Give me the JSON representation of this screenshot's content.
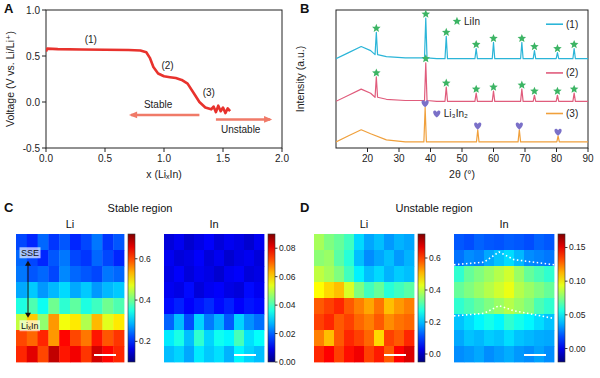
{
  "chart_data": [
    {
      "type": "line",
      "panel": "A",
      "xlabel": "x (LiₓIn)",
      "ylabel": "Voltage (V vs. Li/Li⁺)",
      "xlim": [
        0,
        2
      ],
      "ylim": [
        -0.5,
        1
      ],
      "xticks": [
        {
          "value": 0,
          "label": "0.0"
        },
        0.5,
        {
          "value": 1,
          "label": "1.0"
        },
        1.5,
        {
          "value": 2,
          "label": "2.0"
        }
      ],
      "yticks": [
        -0.5,
        {
          "value": 0,
          "label": "0.0"
        },
        0.5,
        {
          "value": 1,
          "label": "1.0"
        }
      ],
      "x": [
        0,
        0.01,
        0.1,
        0.3,
        0.5,
        0.7,
        0.8,
        0.85,
        0.88,
        0.91,
        0.95,
        1.0,
        1.05,
        1.1,
        1.15,
        1.2,
        1.25,
        1.3,
        1.35,
        1.4,
        1.42,
        1.44,
        1.46,
        1.48,
        1.5,
        1.52,
        1.54,
        1.56
      ],
      "values": [
        0.55,
        0.58,
        0.575,
        0.57,
        0.568,
        0.565,
        0.56,
        0.54,
        0.48,
        0.38,
        0.31,
        0.28,
        0.27,
        0.26,
        0.24,
        0.2,
        0.1,
        0.0,
        -0.06,
        -0.08,
        -0.05,
        -0.11,
        -0.04,
        -0.1,
        -0.06,
        -0.12,
        -0.07,
        -0.1
      ],
      "color": "#e8322d",
      "annotations": [
        "(1)",
        "(2)",
        "(3)",
        "Stable",
        "Unstable"
      ]
    },
    {
      "type": "line",
      "panel": "B",
      "xlabel": "2θ (°)",
      "ylabel": "Intensity (a.u.)",
      "xlim": [
        10,
        90
      ],
      "ylim": [
        0,
        3.4
      ],
      "xticks": [
        20,
        30,
        40,
        50,
        60,
        70,
        80,
        90
      ],
      "tick_labels": "x",
      "legend": "right",
      "series": [
        {
          "name": "(1)",
          "type": "line",
          "color": "#2bb5d8",
          "x": [
            10,
            14,
            18,
            21,
            22.4,
            22.8,
            23.2,
            26,
            32,
            38.1,
            38.5,
            38.9,
            42,
            44.6,
            45,
            45.4,
            50,
            54.1,
            54.5,
            54.9,
            57,
            59.6,
            60,
            60.4,
            65,
            68.6,
            69,
            69.4,
            71,
            72.6,
            73,
            73.4,
            77,
            79.9,
            80.3,
            80.7,
            83,
            85.2,
            85.6,
            86,
            90
          ],
          "values": [
            2.2,
            2.35,
            2.5,
            2.4,
            2.3,
            2.85,
            2.3,
            2.25,
            2.22,
            2.22,
            3.2,
            2.22,
            2.2,
            2.2,
            2.75,
            2.2,
            2.2,
            2.2,
            2.45,
            2.2,
            2.2,
            2.2,
            2.6,
            2.2,
            2.2,
            2.2,
            2.6,
            2.2,
            2.2,
            2.2,
            2.4,
            2.2,
            2.2,
            2.2,
            2.35,
            2.2,
            2.2,
            2.2,
            2.45,
            2.2,
            2.2
          ]
        },
        {
          "name": "(2)",
          "type": "line",
          "color": "#e05c7c",
          "x": [
            10,
            14,
            18,
            21,
            22.4,
            22.8,
            23.2,
            26,
            32,
            38.1,
            38.5,
            38.9,
            42,
            44.6,
            45,
            45.4,
            50,
            54.1,
            54.5,
            54.9,
            57,
            59.6,
            60,
            60.4,
            65,
            68.6,
            69,
            69.4,
            71,
            72.6,
            73,
            73.4,
            77,
            79.9,
            80.3,
            80.7,
            83,
            85.2,
            85.6,
            86,
            90
          ],
          "values": [
            1.15,
            1.3,
            1.45,
            1.35,
            1.25,
            1.75,
            1.25,
            1.2,
            1.17,
            1.17,
            2.1,
            1.17,
            1.15,
            1.15,
            1.5,
            1.15,
            1.15,
            1.15,
            1.35,
            1.15,
            1.15,
            1.15,
            1.4,
            1.15,
            1.15,
            1.15,
            1.45,
            1.15,
            1.15,
            1.15,
            1.3,
            1.15,
            1.15,
            1.15,
            1.3,
            1.15,
            1.15,
            1.15,
            1.35,
            1.15,
            1.15
          ]
        },
        {
          "name": "(3)",
          "type": "line",
          "color": "#f0a03c",
          "x": [
            10,
            14,
            18,
            21,
            26,
            32,
            37.9,
            38.3,
            38.7,
            45,
            54.6,
            55,
            55.4,
            62,
            67.8,
            68.2,
            68.6,
            75,
            80.1,
            80.5,
            80.9,
            90
          ],
          "values": [
            0.15,
            0.3,
            0.45,
            0.35,
            0.2,
            0.15,
            0.15,
            1.0,
            0.15,
            0.15,
            0.15,
            0.45,
            0.15,
            0.15,
            0.15,
            0.45,
            0.15,
            0.15,
            0.15,
            0.3,
            0.15,
            0.15
          ]
        },
        {
          "name": "LiIn",
          "type": "scatter",
          "marker": "star",
          "color": "#3cb464",
          "x": [
            22.8,
            38.5,
            45,
            54.5,
            60,
            69,
            73,
            80.3,
            85.6,
            22.8,
            38.5,
            45,
            54.5,
            60,
            69,
            73,
            80.3,
            85.6
          ],
          "values": [
            2.95,
            3.3,
            2.85,
            2.55,
            2.7,
            2.7,
            2.5,
            2.45,
            2.55,
            1.85,
            2.2,
            1.6,
            1.45,
            1.5,
            1.55,
            1.4,
            1.4,
            1.45
          ]
        },
        {
          "name": "Li₃In₂",
          "type": "scatter",
          "marker": "heart",
          "color": "#7a70c8",
          "x": [
            38.3,
            55,
            68.2,
            80.5
          ],
          "values": [
            1.1,
            0.55,
            0.55,
            0.4
          ]
        }
      ]
    },
    {
      "type": "heatmap",
      "panel": "C",
      "group_title": "Stable region",
      "title": "Li",
      "tick_labels": false,
      "annotations": [
        "SSE",
        "LiₓIn"
      ],
      "colorbar_range": [
        0.1,
        0.72
      ],
      "colorbar_ticks": [
        0.2,
        0.4,
        0.6
      ],
      "cells": [
        [
          0.22,
          0.2,
          0.24,
          0.21,
          0.23,
          0.2,
          0.22,
          0.25,
          0.21,
          0.23
        ],
        [
          0.24,
          0.22,
          0.2,
          0.23,
          0.25,
          0.22,
          0.21,
          0.24,
          0.22,
          0.2
        ],
        [
          0.25,
          0.23,
          0.24,
          0.22,
          0.26,
          0.24,
          0.23,
          0.22,
          0.25,
          0.24
        ],
        [
          0.28,
          0.3,
          0.27,
          0.29,
          0.31,
          0.28,
          0.3,
          0.27,
          0.29,
          0.3
        ],
        [
          0.35,
          0.38,
          0.34,
          0.4,
          0.36,
          0.39,
          0.35,
          0.37,
          0.4,
          0.38
        ],
        [
          0.45,
          0.52,
          0.42,
          0.55,
          0.48,
          0.5,
          0.44,
          0.53,
          0.47,
          0.5
        ],
        [
          0.6,
          0.58,
          0.62,
          0.55,
          0.64,
          0.6,
          0.57,
          0.63,
          0.59,
          0.61
        ],
        [
          0.62,
          0.66,
          0.6,
          0.68,
          0.63,
          0.65,
          0.61,
          0.67,
          0.64,
          0.62
        ]
      ]
    },
    {
      "type": "heatmap",
      "title": "In",
      "tick_labels": false,
      "colorbar_range": [
        0,
        0.09
      ],
      "colorbar_ticks": [
        {
          "value": 0,
          "label": "0.00"
        },
        0.02,
        0.04,
        0.06,
        0.08
      ],
      "cells": [
        [
          0.008,
          0.01,
          0.007,
          0.009,
          0.011,
          0.008,
          0.01,
          0.009,
          0.007,
          0.01
        ],
        [
          0.01,
          0.008,
          0.009,
          0.011,
          0.008,
          0.01,
          0.007,
          0.009,
          0.01,
          0.008
        ],
        [
          0.009,
          0.011,
          0.008,
          0.01,
          0.009,
          0.007,
          0.01,
          0.011,
          0.008,
          0.009
        ],
        [
          0.01,
          0.009,
          0.012,
          0.008,
          0.01,
          0.011,
          0.009,
          0.008,
          0.012,
          0.01
        ],
        [
          0.012,
          0.014,
          0.011,
          0.013,
          0.015,
          0.012,
          0.014,
          0.011,
          0.013,
          0.012
        ],
        [
          0.02,
          0.028,
          0.018,
          0.03,
          0.022,
          0.027,
          0.019,
          0.03,
          0.024,
          0.021
        ],
        [
          0.032,
          0.036,
          0.028,
          0.038,
          0.03,
          0.035,
          0.033,
          0.04,
          0.031,
          0.034
        ],
        [
          0.028,
          0.03,
          0.026,
          0.032,
          0.029,
          0.031,
          0.027,
          0.033,
          0.03,
          0.028
        ]
      ]
    },
    {
      "type": "heatmap",
      "panel": "D",
      "group_title": "Unstable region",
      "title": "Li",
      "tick_labels": false,
      "colorbar_range": [
        -0.05,
        0.75
      ],
      "colorbar_ticks": [
        {
          "value": 0,
          "label": "0.0"
        },
        0.2,
        0.4,
        0.6
      ],
      "cells": [
        [
          0.38,
          0.35,
          0.33,
          0.3,
          0.22,
          0.18,
          0.2,
          0.17,
          0.19,
          0.18
        ],
        [
          0.36,
          0.37,
          0.32,
          0.28,
          0.2,
          0.16,
          0.18,
          0.2,
          0.17,
          0.19
        ],
        [
          0.4,
          0.38,
          0.35,
          0.3,
          0.24,
          0.2,
          0.22,
          0.19,
          0.21,
          0.2
        ],
        [
          0.45,
          0.48,
          0.5,
          0.42,
          0.35,
          0.3,
          0.33,
          0.28,
          0.3,
          0.32
        ],
        [
          0.58,
          0.6,
          0.62,
          0.58,
          0.55,
          0.52,
          0.56,
          0.5,
          0.53,
          0.55
        ],
        [
          0.6,
          0.62,
          0.58,
          0.6,
          0.57,
          0.55,
          0.58,
          0.54,
          0.56,
          0.57
        ],
        [
          0.55,
          0.5,
          0.58,
          0.62,
          0.6,
          0.57,
          0.48,
          0.6,
          0.58,
          0.62
        ],
        [
          0.62,
          0.65,
          0.6,
          0.64,
          0.66,
          0.6,
          0.63,
          0.58,
          0.65,
          0.68
        ]
      ]
    },
    {
      "type": "heatmap",
      "title": "In",
      "tick_labels": false,
      "colorbar_range": [
        -0.02,
        0.17
      ],
      "colorbar_ticks": [
        {
          "value": 0,
          "label": "0.00"
        },
        0.05,
        {
          "value": 0.1,
          "label": "0.10"
        },
        0.15
      ],
      "cells": [
        [
          0.02,
          0.018,
          0.022,
          0.02,
          0.019,
          0.021,
          0.02,
          0.018,
          0.022,
          0.02
        ],
        [
          0.025,
          0.03,
          0.028,
          0.035,
          0.04,
          0.045,
          0.038,
          0.03,
          0.028,
          0.026
        ],
        [
          0.06,
          0.07,
          0.075,
          0.08,
          0.085,
          0.09,
          0.08,
          0.07,
          0.065,
          0.06
        ],
        [
          0.07,
          0.075,
          0.08,
          0.085,
          0.09,
          0.095,
          0.085,
          0.08,
          0.075,
          0.07
        ],
        [
          0.06,
          0.065,
          0.07,
          0.075,
          0.08,
          0.085,
          0.08,
          0.075,
          0.065,
          0.06
        ],
        [
          0.04,
          0.045,
          0.05,
          0.055,
          0.05,
          0.06,
          0.055,
          0.05,
          0.045,
          0.04
        ],
        [
          0.035,
          0.04,
          0.038,
          0.042,
          0.04,
          0.045,
          0.04,
          0.038,
          0.036,
          0.035
        ],
        [
          0.03,
          0.032,
          0.035,
          0.03,
          0.033,
          0.036,
          0.032,
          0.03,
          0.034,
          0.03
        ]
      ]
    }
  ]
}
